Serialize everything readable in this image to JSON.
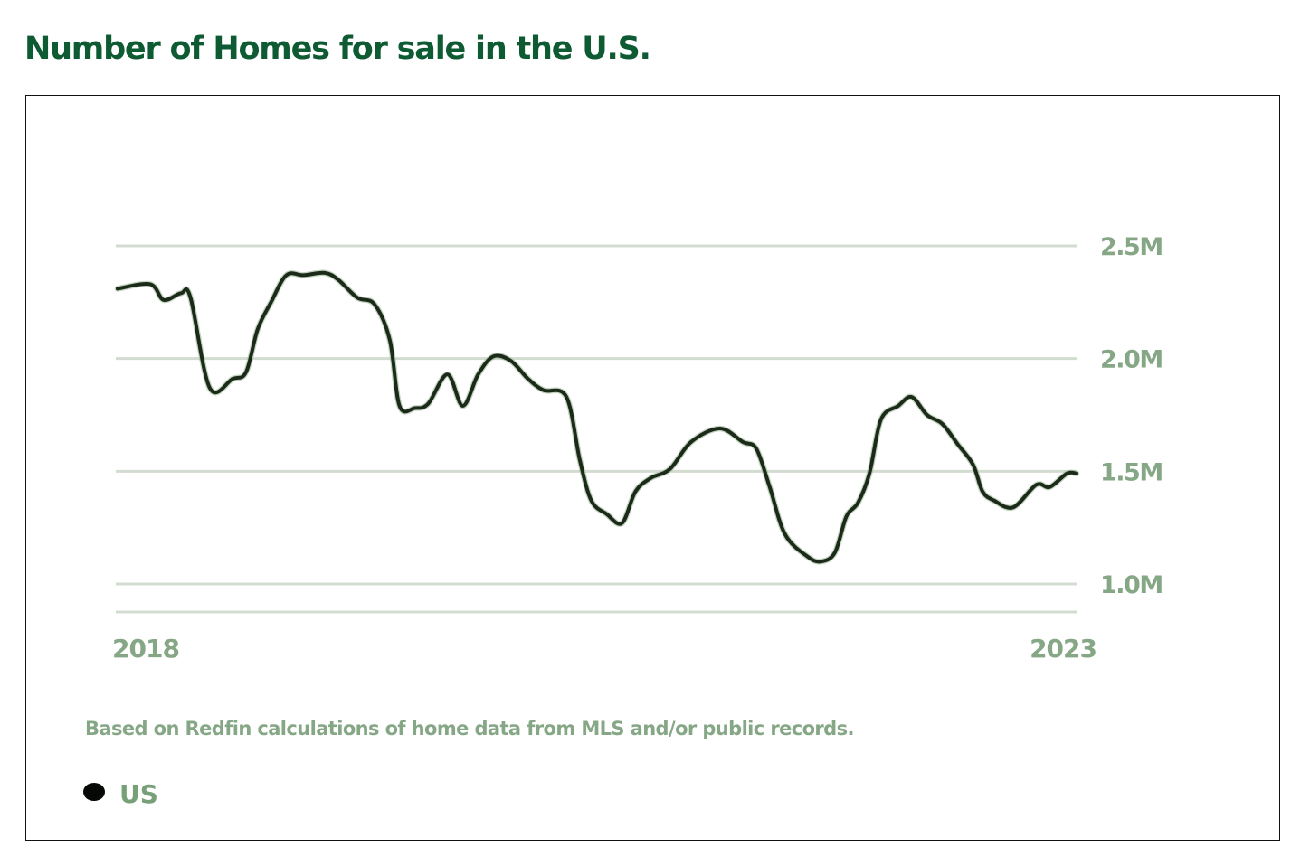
{
  "title": "Number of Homes for sale in the U.S.",
  "source_note": "Based on Redfin calculations of home data from MLS and/or public records.",
  "legend": [
    {
      "label": "US",
      "color": "#050805"
    }
  ],
  "colors": {
    "title": "#0e5a32",
    "line": "#1b2a19",
    "grid": "#d3dcd0",
    "tick_label": "#86a786"
  },
  "chart_data": {
    "type": "line",
    "title": "Number of Homes for sale in the U.S.",
    "xlabel": "",
    "ylabel": "",
    "x_tick_labels": [
      "2018",
      "2023"
    ],
    "x_range": [
      2018.0,
      2023.0
    ],
    "y_ticks": [
      1.0,
      1.5,
      2.0,
      2.5
    ],
    "y_tick_labels": [
      "1.0M",
      "1.5M",
      "2.0M",
      "2.5M"
    ],
    "ylim": [
      0.88,
      2.5
    ],
    "y_unit": "millions",
    "grid": true,
    "y_axis_position": "right",
    "legend_position": "bottom-left",
    "series": [
      {
        "name": "US",
        "x": [
          2018.0,
          2018.17,
          2018.24,
          2018.33,
          2018.38,
          2018.48,
          2018.6,
          2018.67,
          2018.73,
          2018.8,
          2018.88,
          2018.97,
          2019.08,
          2019.15,
          2019.25,
          2019.34,
          2019.42,
          2019.47,
          2019.55,
          2019.62,
          2019.72,
          2019.8,
          2019.88,
          2019.96,
          2020.05,
          2020.14,
          2020.22,
          2020.34,
          2020.41,
          2020.47,
          2020.55,
          2020.63,
          2020.7,
          2020.78,
          2020.88,
          2020.99,
          2021.14,
          2021.26,
          2021.33,
          2021.4,
          2021.48,
          2021.6,
          2021.67,
          2021.74,
          2021.8,
          2021.86,
          2021.92,
          2021.98,
          2022.07,
          2022.14,
          2022.22,
          2022.3,
          2022.38,
          2022.46,
          2022.51,
          2022.57,
          2022.67,
          2022.79,
          2022.86,
          2022.95,
          2023.0
        ],
        "values": [
          2.31,
          2.33,
          2.26,
          2.29,
          2.27,
          1.87,
          1.91,
          1.94,
          2.13,
          2.25,
          2.37,
          2.37,
          2.38,
          2.35,
          2.27,
          2.24,
          2.08,
          1.79,
          1.78,
          1.8,
          1.93,
          1.79,
          1.93,
          2.01,
          1.99,
          1.91,
          1.86,
          1.83,
          1.55,
          1.37,
          1.31,
          1.27,
          1.41,
          1.47,
          1.51,
          1.63,
          1.69,
          1.63,
          1.6,
          1.43,
          1.22,
          1.12,
          1.1,
          1.14,
          1.3,
          1.36,
          1.49,
          1.73,
          1.79,
          1.83,
          1.75,
          1.71,
          1.62,
          1.53,
          1.41,
          1.37,
          1.34,
          1.44,
          1.43,
          1.49,
          1.49
        ]
      }
    ]
  }
}
